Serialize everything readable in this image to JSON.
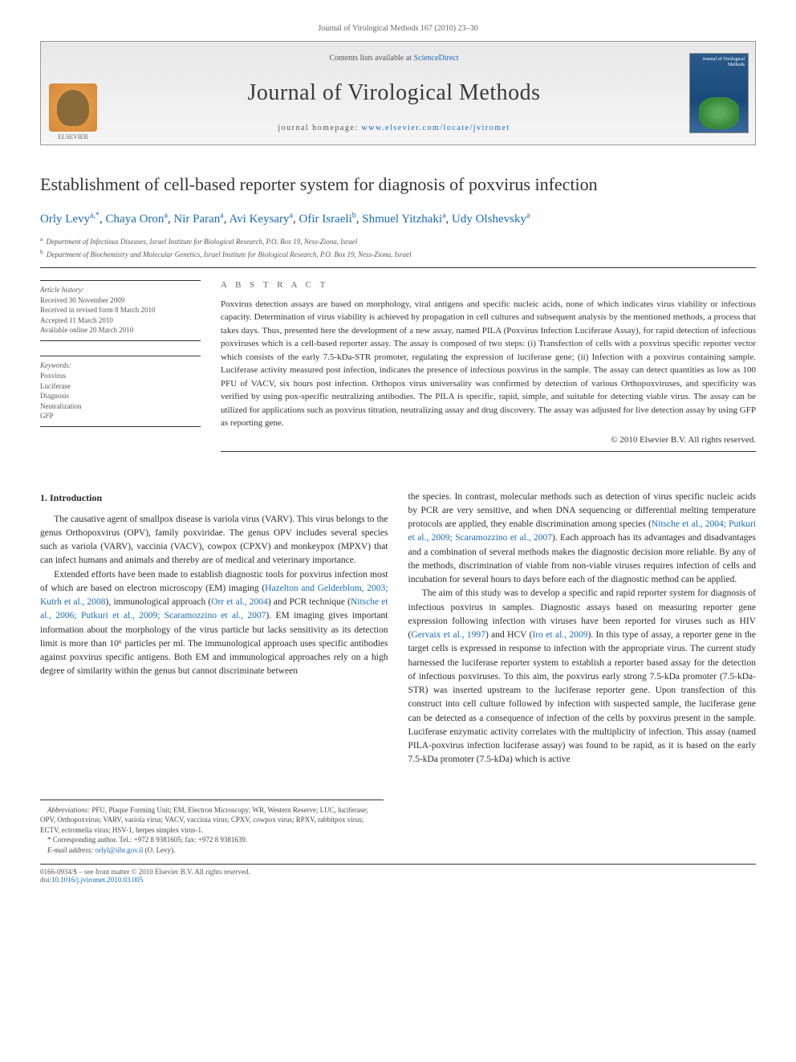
{
  "journal_ref": "Journal of Virological Methods 167 (2010) 23–30",
  "banner": {
    "contents_prefix": "Contents lists available at ",
    "contents_link": "ScienceDirect",
    "journal_title": "Journal of Virological Methods",
    "homepage_prefix": "journal homepage: ",
    "homepage_url": "www.elsevier.com/locate/jviromet",
    "publisher": "ELSEVIER",
    "cover_title": "Journal of Virological Methods"
  },
  "article": {
    "title": "Establishment of cell-based reporter system for diagnosis of poxvirus infection",
    "authors_html": "Orly Levy",
    "authors": [
      {
        "name": "Orly Levy",
        "aff": "a,*"
      },
      {
        "name": "Chaya Oron",
        "aff": "a"
      },
      {
        "name": "Nir Paran",
        "aff": "a"
      },
      {
        "name": "Avi Keysary",
        "aff": "a"
      },
      {
        "name": "Ofir Israeli",
        "aff": "b"
      },
      {
        "name": "Shmuel Yitzhaki",
        "aff": "a"
      },
      {
        "name": "Udy Olshevsky",
        "aff": "a"
      }
    ],
    "affiliations": [
      {
        "key": "a",
        "text": "Department of Infectious Diseases, Israel Institute for Biological Research, P.O. Box 19, Ness-Ziona, Israel"
      },
      {
        "key": "b",
        "text": "Department of Biochemistry and Molecular Genetics, Israel Institute for Biological Research, P.O. Box 19, Ness-Ziona, Israel"
      }
    ]
  },
  "history": {
    "heading": "Article history:",
    "received": "Received 30 November 2009",
    "revised": "Received in revised form 8 March 2010",
    "accepted": "Accepted 11 March 2010",
    "online": "Available online 20 March 2010"
  },
  "keywords": {
    "heading": "Keywords:",
    "items": [
      "Poxvirus",
      "Luciferase",
      "Diagnosis",
      "Neutralization",
      "GFP"
    ]
  },
  "abstract": {
    "heading": "A B S T R A C T",
    "text": "Poxvirus detection assays are based on morphology, viral antigens and specific nucleic acids, none of which indicates virus viability or infectious capacity. Determination of virus viability is achieved by propagation in cell cultures and subsequent analysis by the mentioned methods, a process that takes days. Thus, presented here the development of a new assay, named PILA (Poxvirus Infection Luciferase Assay), for rapid detection of infectious poxviruses which is a cell-based reporter assay. The assay is composed of two steps: (i) Transfection of cells with a poxvirus specific reporter vector which consists of the early 7.5-kDa-STR promoter, regulating the expression of luciferase gene; (ii) Infection with a poxvirus containing sample. Luciferase activity measured post infection, indicates the presence of infectious poxvirus in the sample. The assay can detect quantities as low as 100 PFU of VACV, six hours post infection. Orthopox virus universality was confirmed by detection of various Orthopoxviruses, and specificity was verified by using pox-specific neutralizing antibodies. The PILA is specific, rapid, simple, and suitable for detecting viable virus. The assay can be utilized for applications such as poxvirus titration, neutralizing assay and drug discovery. The assay was adjusted for live detection assay by using GFP as reporting gene.",
    "copyright": "© 2010 Elsevier B.V. All rights reserved."
  },
  "intro": {
    "heading": "1. Introduction",
    "p1": "The causative agent of smallpox disease is variola virus (VARV). This virus belongs to the genus Orthopoxvirus (OPV), family poxviridae. The genus OPV includes several species such as variola (VARV), vaccinia (VACV), cowpox (CPXV) and monkeypox (MPXV) that can infect humans and animals and thereby are of medical and veterinary importance.",
    "p2a": "Extended efforts have been made to establish diagnostic tools for poxvirus infection most of which are based on electron microscopy (EM) imaging (",
    "p2_ref1": "Hazelton and Gelderblom, 2003; Kutrh et al., 2008",
    "p2b": "), immunological approach (",
    "p2_ref2": "Orr et al., 2004",
    "p2c": ") and PCR technique (",
    "p2_ref3": "Nitsche et al., 2006; Putkuri et al., 2009; Scaramozzino et al., 2007",
    "p2d": "). EM imaging gives important information about the morphology of the virus particle but lacks sensitivity as its detection limit is more than 10⁶ particles per ml. The immunological approach uses specific antibodies against poxvirus specific antigens. Both EM and immunological approaches rely on a high degree of similarity within the genus but cannot discriminate between",
    "p3a": "the species. In contrast, molecular methods such as detection of virus specific nucleic acids by PCR are very sensitive, and when DNA sequencing or differential melting temperature protocols are applied, they enable discrimination among species (",
    "p3_ref1": "Nitsche et al., 2004; Putkuri et al., 2009; Scaramozzino et al., 2007",
    "p3b": "). Each approach has its advantages and disadvantages and a combination of several methods makes the diagnostic decision more reliable. By any of the methods, discrimination of viable from non-viable viruses requires infection of cells and incubation for several hours to days before each of the diagnostic method can be applied.",
    "p4a": "The aim of this study was to develop a specific and rapid reporter system for diagnosis of infectious poxvirus in samples. Diagnostic assays based on measuring reporter gene expression following infection with viruses have been reported for viruses such as HIV (",
    "p4_ref1": "Gervaix et al., 1997",
    "p4b": ") and HCV (",
    "p4_ref2": "Iro et al., 2009",
    "p4c": "). In this type of assay, a reporter gene in the target cells is expressed in response to infection with the appropriate virus. The current study harnessed the luciferase reporter system to establish a reporter based assay for the detection of infectious poxviruses. To this aim, the poxvirus early strong 7.5-kDa promoter (7.5-kDa-STR) was inserted upstream to the luciferase reporter gene. Upon transfection of this construct into cell culture followed by infection with suspected sample, the luciferase gene can be detected as a consequence of infection of the cells by poxvirus present in the sample. Luciferase enzymatic activity correlates with the multiplicity of infection. This assay (named PILA-poxvirus infection luciferase assay) was found to be rapid, as it is based on the early 7.5-kDa promoter (7.5-kDa) which is active"
  },
  "footnotes": {
    "abbrev_label": "Abbreviations:",
    "abbrev_text": " PFU, Plaque Forming Unit; EM, Electron Microscopy; WR, Western Reserve; LUC, luciferase; OPV, Orthopoxvirus; VARV, variola virus; VACV, vaccinia virus; CPXV, cowpox virus; RPXV, rabbitpox virus; ECTV, ectromelia virus; HSV-1, herpes simplex virus-1.",
    "corr_label": "* Corresponding author. ",
    "corr_text": "Tel.: +972 8 9381605; fax: +972 8 9381639.",
    "email_label": "E-mail address: ",
    "email": "orlyl@iibr.gov.il",
    "email_suffix": " (O. Levy)."
  },
  "footer": {
    "issn_line": "0166-0934/$ – see front matter © 2010 Elsevier B.V. All rights reserved.",
    "doi_prefix": "doi:",
    "doi": "10.1016/j.jviromet.2010.03.005"
  },
  "colors": {
    "link": "#1a6bb8",
    "text": "#333333",
    "muted": "#666666",
    "rule": "#333333"
  }
}
